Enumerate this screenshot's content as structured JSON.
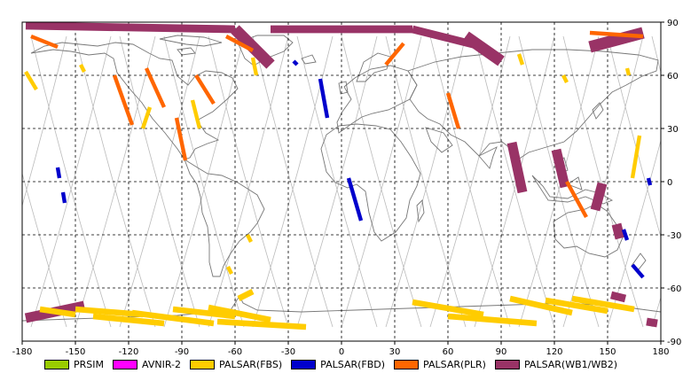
{
  "chart_data": {
    "type": "map",
    "projection": "equirectangular",
    "x_axis": {
      "range": [
        -180,
        180
      ],
      "ticks": [
        -180,
        -150,
        -120,
        -90,
        -60,
        -30,
        0,
        30,
        60,
        90,
        120,
        150,
        180
      ],
      "tick_labels": [
        "-180",
        "-150",
        "-120",
        "-90",
        "-60",
        "-30",
        "0",
        "30",
        "60",
        "90",
        "120",
        "150",
        "180"
      ]
    },
    "y_axis": {
      "range": [
        -90,
        90
      ],
      "ticks": [
        90,
        60,
        30,
        0,
        -30,
        -60,
        -90
      ],
      "tick_labels": [
        "90",
        "60",
        "30",
        "0",
        "-30",
        "-60",
        "-90"
      ]
    },
    "grid": "dashed",
    "legend": [
      {
        "name": "PRSIM",
        "color": "#99cc00"
      },
      {
        "name": "AVNIR-2",
        "color": "#ff00ff"
      },
      {
        "name": "PALSAR(FBS)",
        "color": "#ffcc00"
      },
      {
        "name": "PALSAR(FBD)",
        "color": "#0000cc"
      },
      {
        "name": "PALSAR(PLR)",
        "color": "#ff6600"
      },
      {
        "name": "PALSAR(WB1/WB2)",
        "color": "#993366"
      }
    ],
    "observation_segments": [
      {
        "mode": "PALSAR(WB1/WB2)",
        "start": [
          -178,
          88
        ],
        "end": [
          -60,
          86
        ],
        "width": 4
      },
      {
        "mode": "PALSAR(WB1/WB2)",
        "start": [
          -60,
          86
        ],
        "end": [
          -40,
          66
        ],
        "width": 6
      },
      {
        "mode": "PALSAR(WB1/WB2)",
        "start": [
          -40,
          86
        ],
        "end": [
          40,
          86
        ],
        "width": 4
      },
      {
        "mode": "PALSAR(WB1/WB2)",
        "start": [
          40,
          86
        ],
        "end": [
          80,
          76
        ],
        "width": 4
      },
      {
        "mode": "PALSAR(WB1/WB2)",
        "start": [
          70,
          82
        ],
        "end": [
          90,
          68
        ],
        "width": 6
      },
      {
        "mode": "PALSAR(WB1/WB2)",
        "start": [
          140,
          76
        ],
        "end": [
          170,
          84
        ],
        "width": 6
      },
      {
        "mode": "PALSAR(WB1/WB2)",
        "start": [
          96,
          22
        ],
        "end": [
          102,
          -6
        ],
        "width": 5
      },
      {
        "mode": "PALSAR(WB1/WB2)",
        "start": [
          121,
          18
        ],
        "end": [
          126,
          -3
        ],
        "width": 5
      },
      {
        "mode": "PALSAR(WB1/WB2)",
        "start": [
          147,
          -1
        ],
        "end": [
          143,
          -16
        ],
        "width": 5
      },
      {
        "mode": "PALSAR(WB1/WB2)",
        "start": [
          155,
          -24
        ],
        "end": [
          157,
          -32
        ],
        "width": 5
      },
      {
        "mode": "PALSAR(WB1/WB2)",
        "start": [
          -178,
          -77
        ],
        "end": [
          -145,
          -70
        ],
        "width": 5
      },
      {
        "mode": "PALSAR(WB1/WB2)",
        "start": [
          152,
          -64
        ],
        "end": [
          160,
          -66
        ],
        "width": 4
      },
      {
        "mode": "PALSAR(WB1/WB2)",
        "start": [
          172,
          -79
        ],
        "end": [
          178,
          -80
        ],
        "width": 4
      },
      {
        "mode": "PALSAR(FBD)",
        "start": [
          -27,
          68
        ],
        "end": [
          -25,
          66
        ],
        "width": 2
      },
      {
        "mode": "PALSAR(FBD)",
        "start": [
          -12,
          58
        ],
        "end": [
          -8,
          36
        ],
        "width": 2
      },
      {
        "mode": "PALSAR(FBD)",
        "start": [
          -160,
          8
        ],
        "end": [
          -159,
          2
        ],
        "width": 2
      },
      {
        "mode": "PALSAR(FBD)",
        "start": [
          -157,
          -6
        ],
        "end": [
          -156,
          -12
        ],
        "width": 2
      },
      {
        "mode": "PALSAR(FBD)",
        "start": [
          4,
          2
        ],
        "end": [
          11,
          -22
        ],
        "width": 2
      },
      {
        "mode": "PALSAR(FBD)",
        "start": [
          173,
          2
        ],
        "end": [
          174,
          -2
        ],
        "width": 2
      },
      {
        "mode": "PALSAR(FBD)",
        "start": [
          159,
          -27
        ],
        "end": [
          161,
          -33
        ],
        "width": 2
      },
      {
        "mode": "PALSAR(FBD)",
        "start": [
          164,
          -47
        ],
        "end": [
          170,
          -54
        ],
        "width": 2
      },
      {
        "mode": "PALSAR(PLR)",
        "start": [
          -175,
          82
        ],
        "end": [
          -160,
          76
        ],
        "width": 2
      },
      {
        "mode": "PALSAR(PLR)",
        "start": [
          -128,
          60
        ],
        "end": [
          -118,
          32
        ],
        "width": 2
      },
      {
        "mode": "PALSAR(PLR)",
        "start": [
          -110,
          64
        ],
        "end": [
          -100,
          42
        ],
        "width": 2
      },
      {
        "mode": "PALSAR(PLR)",
        "start": [
          -93,
          36
        ],
        "end": [
          -88,
          12
        ],
        "width": 2
      },
      {
        "mode": "PALSAR(PLR)",
        "start": [
          -82,
          60
        ],
        "end": [
          -72,
          44
        ],
        "width": 2
      },
      {
        "mode": "PALSAR(PLR)",
        "start": [
          -65,
          82
        ],
        "end": [
          -50,
          74
        ],
        "width": 2
      },
      {
        "mode": "PALSAR(PLR)",
        "start": [
          25,
          66
        ],
        "end": [
          35,
          78
        ],
        "width": 2
      },
      {
        "mode": "PALSAR(PLR)",
        "start": [
          60,
          50
        ],
        "end": [
          66,
          30
        ],
        "width": 2
      },
      {
        "mode": "PALSAR(PLR)",
        "start": [
          127,
          0
        ],
        "end": [
          138,
          -20
        ],
        "width": 2
      },
      {
        "mode": "PALSAR(PLR)",
        "start": [
          140,
          84
        ],
        "end": [
          170,
          82
        ],
        "width": 2
      },
      {
        "mode": "PALSAR(FBS)",
        "start": [
          -178,
          62
        ],
        "end": [
          -172,
          52
        ],
        "width": 2
      },
      {
        "mode": "PALSAR(FBS)",
        "start": [
          -147,
          66
        ],
        "end": [
          -145,
          62
        ],
        "width": 2
      },
      {
        "mode": "PALSAR(FBS)",
        "start": [
          -108,
          42
        ],
        "end": [
          -112,
          30
        ],
        "width": 2
      },
      {
        "mode": "PALSAR(FBS)",
        "start": [
          -84,
          46
        ],
        "end": [
          -80,
          30
        ],
        "width": 2
      },
      {
        "mode": "PALSAR(FBS)",
        "start": [
          -50,
          70
        ],
        "end": [
          -48,
          60
        ],
        "width": 2
      },
      {
        "mode": "PALSAR(FBS)",
        "start": [
          -53,
          -30
        ],
        "end": [
          -51,
          -34
        ],
        "width": 2
      },
      {
        "mode": "PALSAR(FBS)",
        "start": [
          -64,
          -48
        ],
        "end": [
          -62,
          -52
        ],
        "width": 2
      },
      {
        "mode": "PALSAR(FBS)",
        "start": [
          100,
          72
        ],
        "end": [
          102,
          66
        ],
        "width": 2
      },
      {
        "mode": "PALSAR(FBS)",
        "start": [
          125,
          60
        ],
        "end": [
          127,
          56
        ],
        "width": 2
      },
      {
        "mode": "PALSAR(FBS)",
        "start": [
          161,
          64
        ],
        "end": [
          162,
          60
        ],
        "width": 2
      },
      {
        "mode": "PALSAR(FBS)",
        "start": [
          168,
          26
        ],
        "end": [
          164,
          2
        ],
        "width": 2
      },
      {
        "mode": "PALSAR(FBS)",
        "start": [
          -150,
          -72
        ],
        "end": [
          -112,
          -75
        ],
        "width": 3
      },
      {
        "mode": "PALSAR(FBS)",
        "start": [
          -140,
          -76
        ],
        "end": [
          -100,
          -80
        ],
        "width": 3
      },
      {
        "mode": "PALSAR(FBS)",
        "start": [
          -118,
          -74
        ],
        "end": [
          -72,
          -80
        ],
        "width": 3
      },
      {
        "mode": "PALSAR(FBS)",
        "start": [
          -95,
          -72
        ],
        "end": [
          -60,
          -76
        ],
        "width": 3
      },
      {
        "mode": "PALSAR(FBS)",
        "start": [
          -75,
          -71
        ],
        "end": [
          -40,
          -78
        ],
        "width": 3
      },
      {
        "mode": "PALSAR(FBS)",
        "start": [
          -50,
          -62
        ],
        "end": [
          -58,
          -66
        ],
        "width": 3
      },
      {
        "mode": "PALSAR(FBS)",
        "start": [
          -70,
          -79
        ],
        "end": [
          -20,
          -82
        ],
        "width": 3
      },
      {
        "mode": "PALSAR(FBS)",
        "start": [
          40,
          -68
        ],
        "end": [
          80,
          -75
        ],
        "width": 3
      },
      {
        "mode": "PALSAR(FBS)",
        "start": [
          60,
          -76
        ],
        "end": [
          110,
          -80
        ],
        "width": 3
      },
      {
        "mode": "PALSAR(FBS)",
        "start": [
          95,
          -66
        ],
        "end": [
          130,
          -74
        ],
        "width": 3
      },
      {
        "mode": "PALSAR(FBS)",
        "start": [
          115,
          -67
        ],
        "end": [
          150,
          -73
        ],
        "width": 3
      },
      {
        "mode": "PALSAR(FBS)",
        "start": [
          130,
          -66
        ],
        "end": [
          165,
          -72
        ],
        "width": 3
      },
      {
        "mode": "PALSAR(FBS)",
        "start": [
          -170,
          -72
        ],
        "end": [
          -150,
          -75
        ],
        "width": 3
      }
    ]
  }
}
